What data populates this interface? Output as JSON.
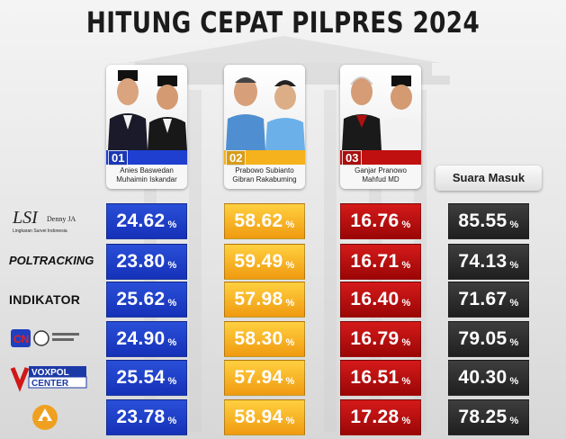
{
  "title": "HITUNG CEPAT PILPRES 2024",
  "candidates": [
    {
      "number": "01",
      "names": "Anies Baswedan\nMuhaimin Iskandar",
      "color": "#1e3fcf"
    },
    {
      "number": "02",
      "names": "Prabowo Subianto\nGibran Rakabuming",
      "color": "#f6b21c"
    },
    {
      "number": "03",
      "names": "Ganjar Pranowo\nMahfud MD",
      "color": "#c01010"
    }
  ],
  "suara_masuk_label": "Suara Masuk",
  "logos": [
    {
      "text": "LSI Denny JA",
      "sub": "Lingkaran Survei Indonesia"
    },
    {
      "text": "POLTRACKING",
      "sub": ""
    },
    {
      "text": "INDIKATOR",
      "sub": ""
    },
    {
      "text": "CNN",
      "sub": ""
    },
    {
      "text": "VOXPOL CENTER",
      "sub": ""
    },
    {
      "text": "",
      "sub": ""
    }
  ],
  "percent_suffix": "%",
  "chart_data": {
    "type": "table",
    "title": "HITUNG CEPAT PILPRES 2024",
    "columns": [
      "01",
      "02",
      "03",
      "Suara Masuk"
    ],
    "rows": [
      {
        "values": [
          "24.62",
          "58.62",
          "16.76",
          "85.55"
        ]
      },
      {
        "values": [
          "23.80",
          "59.49",
          "16.71",
          "74.13"
        ]
      },
      {
        "values": [
          "25.62",
          "57.98",
          "16.40",
          "71.67"
        ]
      },
      {
        "values": [
          "24.90",
          "58.30",
          "16.79",
          "79.05"
        ]
      },
      {
        "values": [
          "25.54",
          "57.94",
          "16.51",
          "40.30"
        ]
      },
      {
        "values": [
          "23.78",
          "58.94",
          "17.28",
          "78.25"
        ]
      }
    ]
  }
}
